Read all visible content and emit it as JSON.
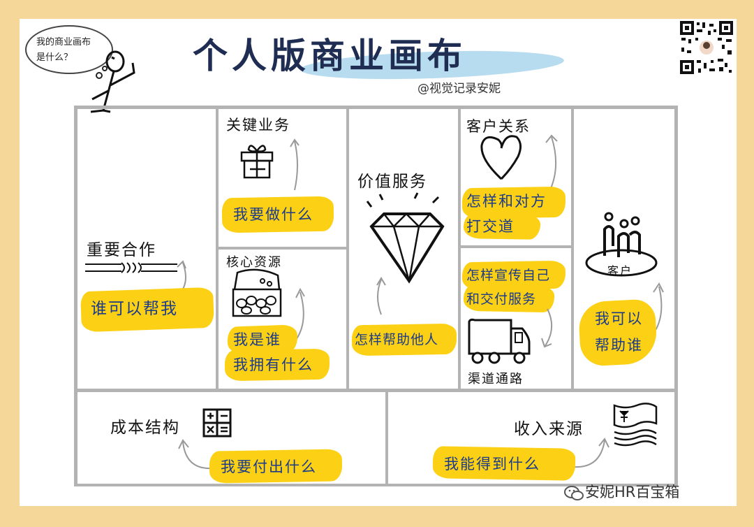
{
  "title": "个人版商业画布",
  "credit": "@视觉记录安妮",
  "speech_bubble": [
    "我的商业画布",
    "是什么？"
  ],
  "blocks": {
    "key_partners": {
      "label": "重要合作",
      "question": "谁可以帮我"
    },
    "key_activities": {
      "label": "关键业务",
      "question": "我要做什么"
    },
    "key_resources": {
      "label": "核心资源",
      "question_line1": "我是谁",
      "question_line2": "我拥有什么"
    },
    "value_proposition": {
      "label": "价值服务",
      "question": "怎样帮助他人"
    },
    "customer_relationships": {
      "label": "客户关系",
      "question_line1": "怎样和对方",
      "question_line2": "打交道"
    },
    "channels": {
      "label": "渠道通路",
      "question_line1": "怎样宣传自己",
      "question_line2": "和交付服务"
    },
    "customers": {
      "label": "客户",
      "question_line1": "我可以",
      "question_line2": "帮助谁"
    },
    "cost_structure": {
      "label": "成本结构",
      "question": "我要付出什么"
    },
    "revenue_streams": {
      "label": "收入来源",
      "question": "我能得到什么"
    }
  },
  "watermark": "安妮HR百宝箱",
  "colors": {
    "background": "#f5d79a",
    "highlight": "#fcd115",
    "highlight_text": "#1c3a8a",
    "title": "#1f2d52",
    "title_swash": "#b8dcef"
  }
}
